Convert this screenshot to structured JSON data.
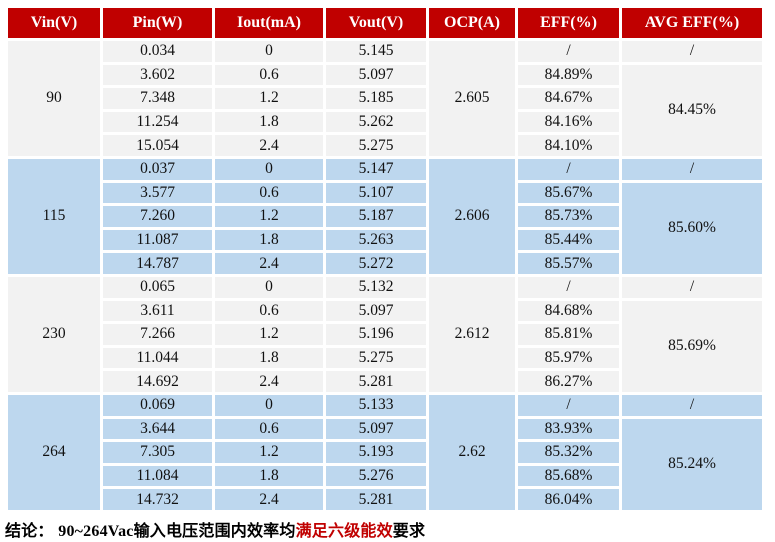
{
  "colors": {
    "header_bg": "#C00000",
    "header_text": "#FFFFFF",
    "group_light_bg": "#F2F2F2",
    "group_blue_bg": "#BDD7EE",
    "conclusion_highlight": "#C00000"
  },
  "table": {
    "columns": [
      "Vin(V)",
      "Pin(W)",
      "Iout(mA)",
      "Vout(V)",
      "OCP(A)",
      "EFF(%)",
      "AVG EFF(%)"
    ],
    "groups": [
      {
        "vin": "90",
        "ocp": "2.605",
        "avg_eff_first": "/",
        "avg_eff": "84.45%",
        "rows": [
          {
            "pin": "0.034",
            "iout": "0",
            "vout": "5.145",
            "eff": "/"
          },
          {
            "pin": "3.602",
            "iout": "0.6",
            "vout": "5.097",
            "eff": "84.89%"
          },
          {
            "pin": "7.348",
            "iout": "1.2",
            "vout": "5.185",
            "eff": "84.67%"
          },
          {
            "pin": "11.254",
            "iout": "1.8",
            "vout": "5.262",
            "eff": "84.16%"
          },
          {
            "pin": "15.054",
            "iout": "2.4",
            "vout": "5.275",
            "eff": "84.10%"
          }
        ]
      },
      {
        "vin": "115",
        "ocp": "2.606",
        "avg_eff_first": "/",
        "avg_eff": "85.60%",
        "rows": [
          {
            "pin": "0.037",
            "iout": "0",
            "vout": "5.147",
            "eff": "/"
          },
          {
            "pin": "3.577",
            "iout": "0.6",
            "vout": "5.107",
            "eff": "85.67%"
          },
          {
            "pin": "7.260",
            "iout": "1.2",
            "vout": "5.187",
            "eff": "85.73%"
          },
          {
            "pin": "11.087",
            "iout": "1.8",
            "vout": "5.263",
            "eff": "85.44%"
          },
          {
            "pin": "14.787",
            "iout": "2.4",
            "vout": "5.272",
            "eff": "85.57%"
          }
        ]
      },
      {
        "vin": "230",
        "ocp": "2.612",
        "avg_eff_first": "/",
        "avg_eff": "85.69%",
        "rows": [
          {
            "pin": "0.065",
            "iout": "0",
            "vout": "5.132",
            "eff": "/"
          },
          {
            "pin": "3.611",
            "iout": "0.6",
            "vout": "5.097",
            "eff": "84.68%"
          },
          {
            "pin": "7.266",
            "iout": "1.2",
            "vout": "5.196",
            "eff": "85.81%"
          },
          {
            "pin": "11.044",
            "iout": "1.8",
            "vout": "5.275",
            "eff": "85.97%"
          },
          {
            "pin": "14.692",
            "iout": "2.4",
            "vout": "5.281",
            "eff": "86.27%"
          }
        ]
      },
      {
        "vin": "264",
        "ocp": "2.62",
        "avg_eff_first": "/",
        "avg_eff": "85.24%",
        "rows": [
          {
            "pin": "0.069",
            "iout": "0",
            "vout": "5.133",
            "eff": "/"
          },
          {
            "pin": "3.644",
            "iout": "0.6",
            "vout": "5.097",
            "eff": "83.93%"
          },
          {
            "pin": "7.305",
            "iout": "1.2",
            "vout": "5.193",
            "eff": "85.32%"
          },
          {
            "pin": "11.084",
            "iout": "1.8",
            "vout": "5.276",
            "eff": "85.68%"
          },
          {
            "pin": "14.732",
            "iout": "2.4",
            "vout": "5.281",
            "eff": "86.04%"
          }
        ]
      }
    ]
  },
  "conclusion": {
    "label": "结论：",
    "range_segment": "90~264Vac",
    "text_before_highlight": "输入电压范围内效率均",
    "highlight": "满足六级能效",
    "text_after_highlight": "要求"
  }
}
